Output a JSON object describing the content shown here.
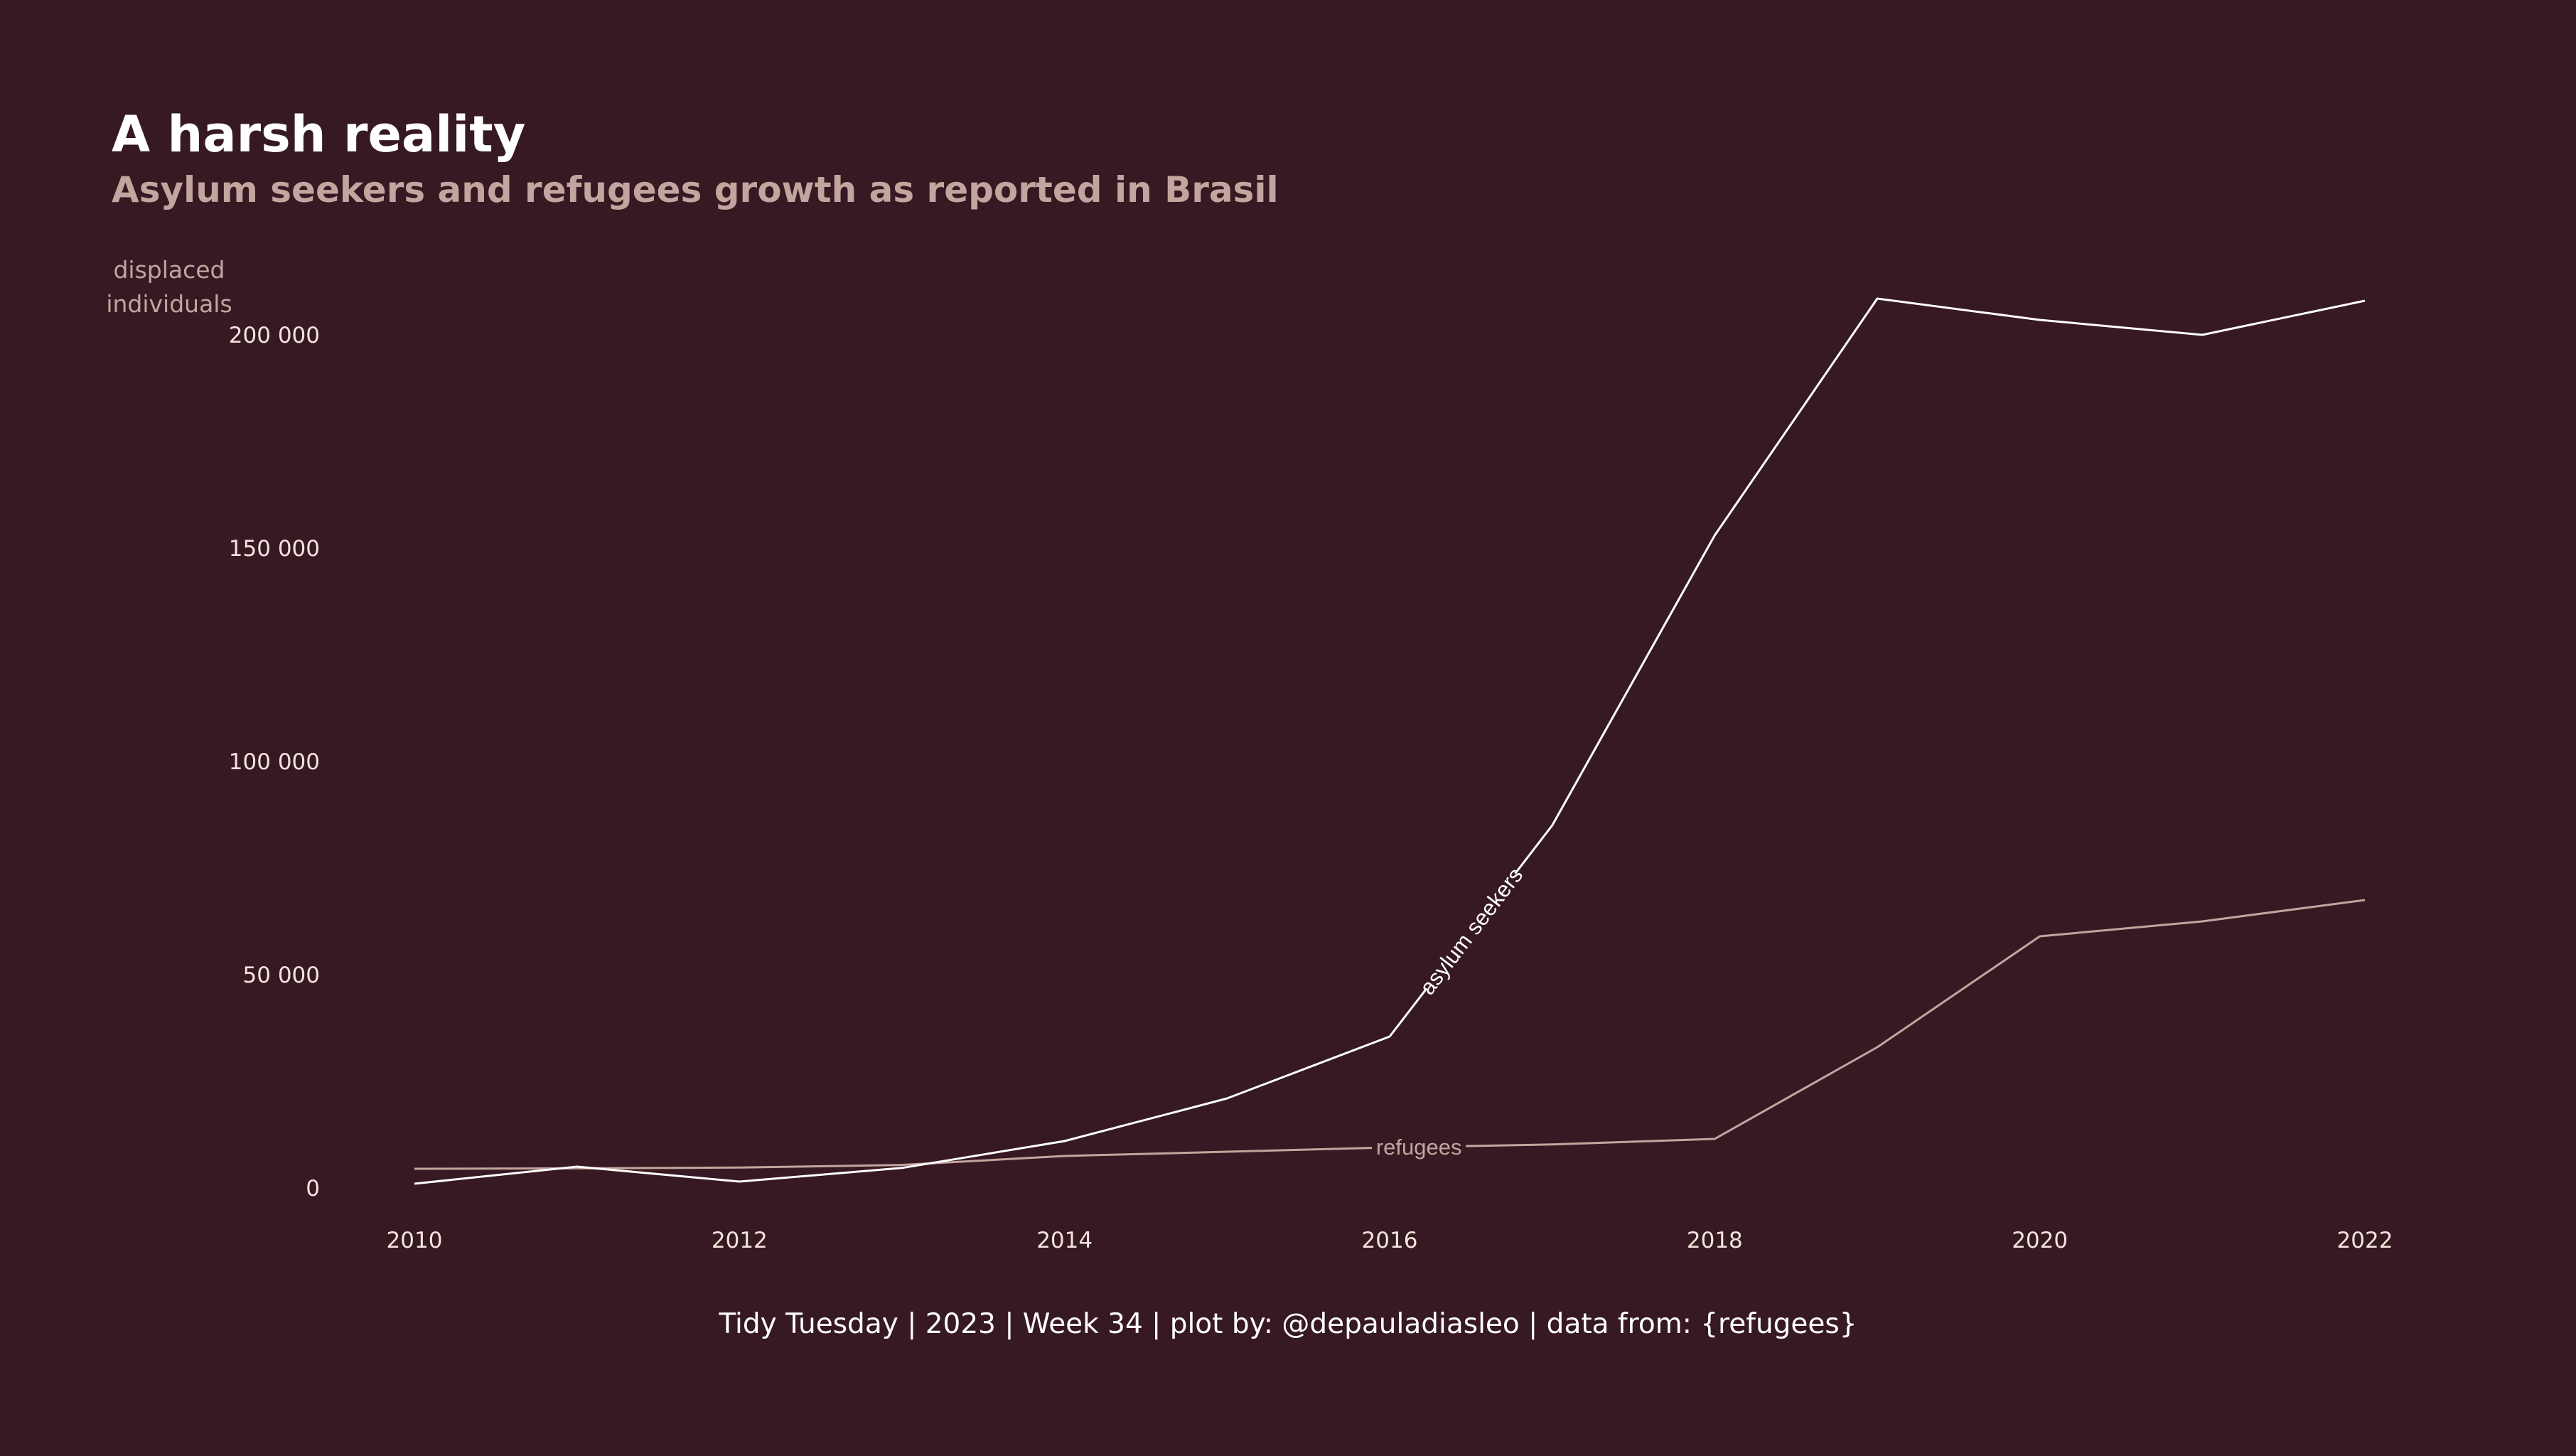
{
  "title": "A harsh reality",
  "subtitle": "Asylum seekers and refugees growth as reported in Brasil",
  "caption": "Tidy Tuesday | 2023 | Week 34 | plot by: @depauladiasleo | data from: {refugees}",
  "colors": {
    "background": "#361922",
    "asylum_seekers": "#ffffff",
    "refugees": "#c2a59e",
    "subtitle": "#c2a59e"
  },
  "chart_data": {
    "type": "line",
    "title": "A harsh reality",
    "subtitle": "Asylum seekers and refugees growth as reported in Brasil",
    "ylabel_lines": [
      "displaced",
      "individuals"
    ],
    "xlabel": "",
    "x": [
      2010,
      2011,
      2012,
      2013,
      2014,
      2015,
      2016,
      2017,
      2018,
      2019,
      2020,
      2021,
      2022
    ],
    "series": [
      {
        "name": "asylum seekers",
        "color": "#ffffff",
        "values": [
          1000,
          5000,
          1500,
          4700,
          11000,
          21000,
          35500,
          85000,
          153000,
          208500,
          203500,
          200000,
          208000
        ]
      },
      {
        "name": "refugees",
        "color": "#c2a59e",
        "values": [
          4500,
          4600,
          4800,
          5400,
          7500,
          8500,
          9500,
          10200,
          11500,
          33000,
          59000,
          62500,
          67500
        ]
      }
    ],
    "xticks": [
      "2010",
      "2012",
      "2014",
      "2016",
      "2018",
      "2020",
      "2022"
    ],
    "yticks": [
      {
        "value": 0,
        "label": "0"
      },
      {
        "value": 50000,
        "label": "50 000"
      },
      {
        "value": 100000,
        "label": "100 000"
      },
      {
        "value": 150000,
        "label": "150 000"
      },
      {
        "value": 200000,
        "label": "200 000"
      }
    ],
    "xlim": [
      2009.6,
      2022.4
    ],
    "ylim": [
      0,
      210000
    ],
    "grid": false,
    "legend": "direct labels on lines"
  }
}
